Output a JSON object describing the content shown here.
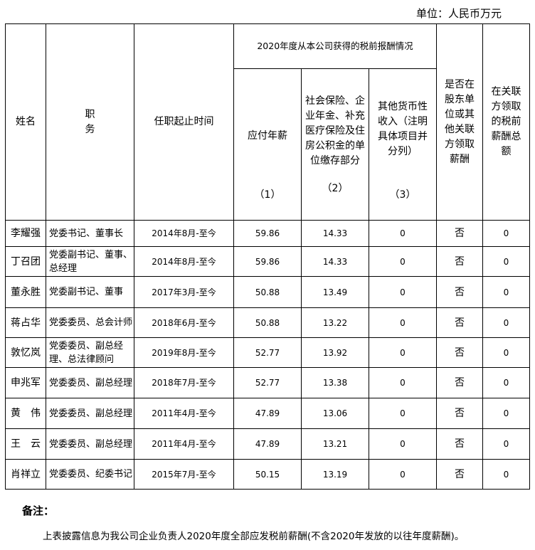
{
  "unit": "单位：人民币万元",
  "header": {
    "name": "姓名",
    "position": "职务",
    "tenure": "任职起止时间",
    "group": "2020年度从本公司获得的税前报酬情况",
    "annual_salary": "应付年薪",
    "annual_salary_no": "（1）",
    "social": "社会保险、企业年金、补充医疗保险及住房公积金的单位缴存部分",
    "social_no": "（2）",
    "other": "其他货币性收入（注明具体项目并分列）",
    "other_no": "（3）",
    "shareholder": "是否在股东单位或其他关联方领取薪酬",
    "related_total": "在关联方领取的税前薪酬总额"
  },
  "rows": [
    {
      "name": "李耀强",
      "position": "党委书记、董事长",
      "tenure": "2014年8月-至今",
      "salary": "59.86",
      "social": "14.33",
      "other": "0",
      "shareholder": "否",
      "related": "0"
    },
    {
      "name": "丁召团",
      "position": "党委副书记、董事、总经理",
      "tenure": "2014年8月-至今",
      "salary": "59.86",
      "social": "14.33",
      "other": "0",
      "shareholder": "否",
      "related": "0"
    },
    {
      "name": "董永胜",
      "position": "党委副书记、董事",
      "tenure": "2017年3月-至今",
      "salary": "50.88",
      "social": "13.49",
      "other": "0",
      "shareholder": "否",
      "related": "0"
    },
    {
      "name": "蒋占华",
      "position": "党委委员、总会计师",
      "tenure": "2018年6月-至今",
      "salary": "50.88",
      "social": "13.22",
      "other": "0",
      "shareholder": "否",
      "related": "0"
    },
    {
      "name": "敦忆岚",
      "position": "党委委员、副总经理、总法律顾问",
      "tenure": "2019年8月-至今",
      "salary": "52.77",
      "social": "13.92",
      "other": "0",
      "shareholder": "否",
      "related": "0"
    },
    {
      "name": "申兆军",
      "position": "党委委员、副总经理",
      "tenure": "2018年7月-至今",
      "salary": "52.77",
      "social": "13.38",
      "other": "0",
      "shareholder": "否",
      "related": "0"
    },
    {
      "name": "黄　伟",
      "position": "党委委员、副总经理",
      "tenure": "2011年4月-至今",
      "salary": "47.89",
      "social": "13.06",
      "other": "0",
      "shareholder": "否",
      "related": "0"
    },
    {
      "name": "王　云",
      "position": "党委委员、副总经理",
      "tenure": "2011年4月-至今",
      "salary": "47.89",
      "social": "13.21",
      "other": "0",
      "shareholder": "否",
      "related": "0"
    },
    {
      "name": "肖祥立",
      "position": "党委委员、纪委书记",
      "tenure": "2015年7月-至今",
      "salary": "50.15",
      "social": "13.19",
      "other": "0",
      "shareholder": "否",
      "related": "0"
    }
  ],
  "note_title": "备注：",
  "note_text": "上表披露信息为我公司企业负责人2020年度全部应发税前薪酬(不含2020年发放的以往年度薪酬)。"
}
